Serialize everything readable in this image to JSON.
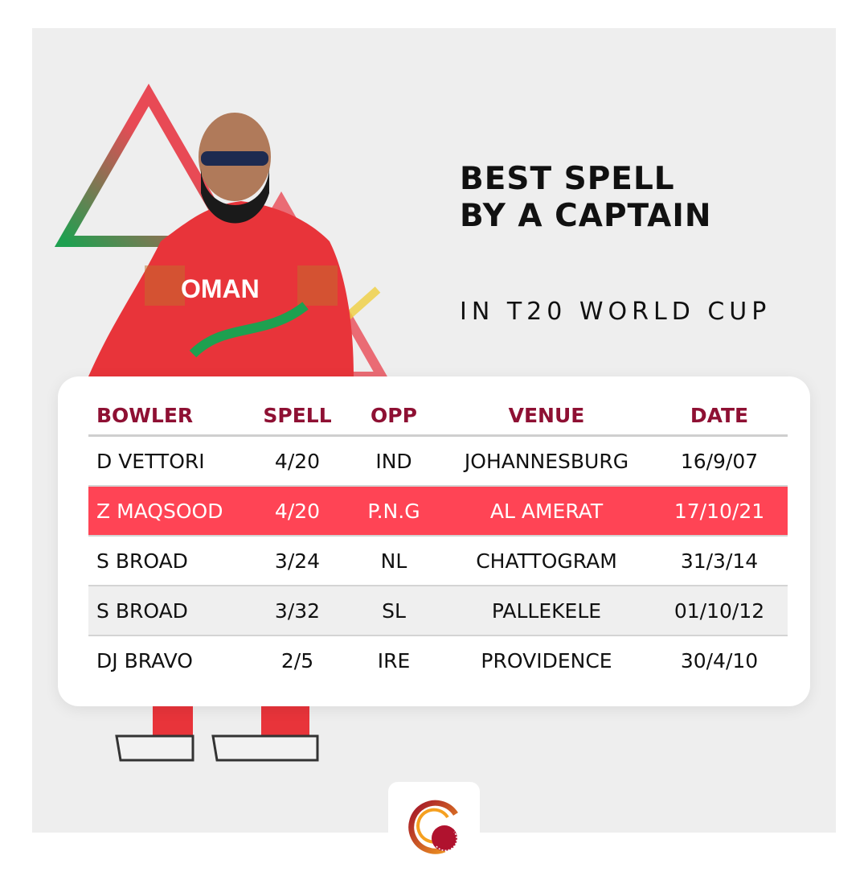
{
  "title_lines": [
    "BEST SPELL",
    "BY A CAPTAIN"
  ],
  "subtitle": "IN T20 WORLD CUP",
  "jersey_text": "OMAN",
  "colors": {
    "header": "#8e1033",
    "highlight": "#ff4455",
    "alt_row": "#efefef",
    "panel": "#eeeeee"
  },
  "table": {
    "headers": [
      "BOWLER",
      "SPELL",
      "OPP",
      "VENUE",
      "DATE"
    ],
    "rows": [
      [
        "D VETTORI",
        "4/20",
        "IND",
        "JOHANNESBURG",
        "16/9/07"
      ],
      [
        "Z MAQSOOD",
        "4/20",
        "P.N.G",
        "AL AMERAT",
        "17/10/21"
      ],
      [
        "S BROAD",
        "3/24",
        "NL",
        "CHATTOGRAM",
        "31/3/14"
      ],
      [
        "S BROAD",
        "3/32",
        "SL",
        "PALLEKELE",
        "01/10/12"
      ],
      [
        "DJ BRAVO",
        "2/5",
        "IRE",
        "PROVIDENCE",
        "30/4/10"
      ]
    ],
    "highlighted_row": 1
  },
  "logo_icon": "cricket-ball-swirl-logo"
}
